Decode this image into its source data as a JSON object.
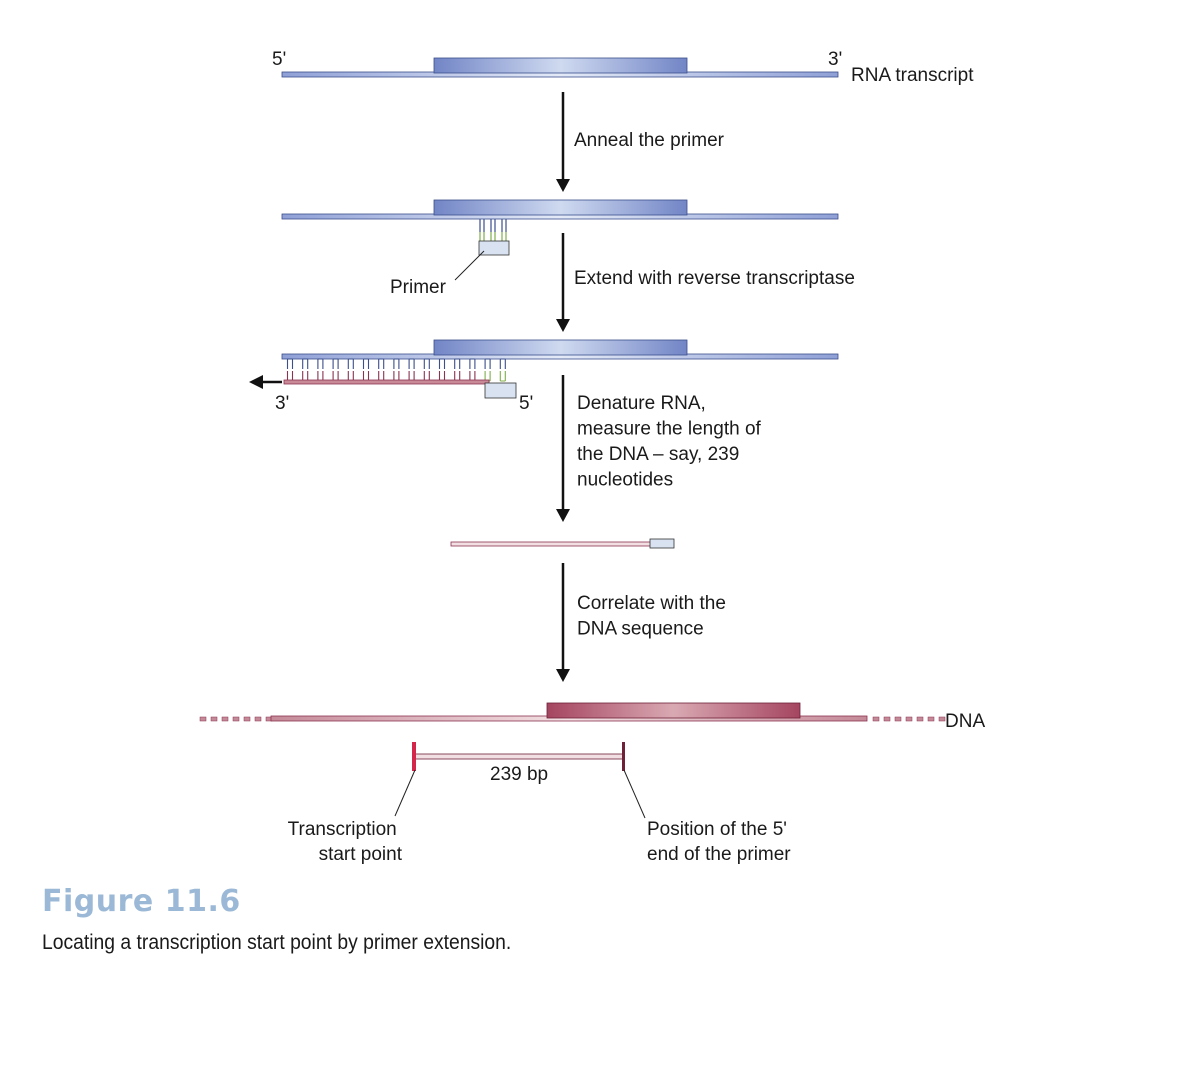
{
  "diagram": {
    "step1": {
      "label_5prime": "5'",
      "label_3prime": "3'",
      "rna_label": "RNA transcript"
    },
    "arrow1_label": "Anneal the primer",
    "step2": {
      "primer_label": "Primer"
    },
    "arrow2_label": "Extend with reverse transcriptase",
    "step3": {
      "label_3prime": "3'",
      "label_5prime": "5'"
    },
    "arrow3_lines": [
      "Denature RNA,",
      "measure the length of",
      "the DNA – say, 239",
      "nucleotides"
    ],
    "arrow4_lines": [
      "Correlate with the",
      "DNA sequence"
    ],
    "step5": {
      "dna_label": "DNA",
      "distance_label": "239 bp",
      "start_label_lines": [
        "Transcription",
        "start point"
      ],
      "primer_end_label_lines": [
        "Position of the 5'",
        "end of the primer"
      ]
    },
    "colors": {
      "rna": "#6f82c4",
      "rna_light": "#cdd6ee",
      "dna": "#a8485f",
      "dna_light": "#e7bcc4",
      "primer_fill": "#d9e2f1",
      "primer_bond": "#7fae4a",
      "start_marker": "#d4264a"
    }
  },
  "figure": {
    "title": "Figure 11.6",
    "caption": "Locating a transcription start point by primer extension."
  }
}
